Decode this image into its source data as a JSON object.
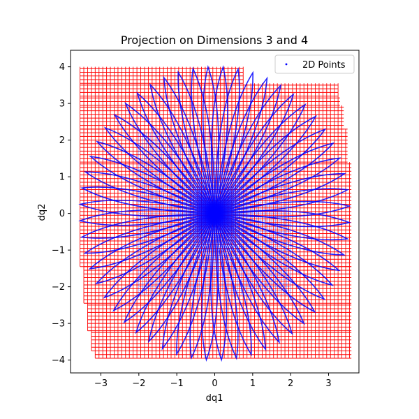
{
  "chart_data": {
    "type": "scatter",
    "title": "Projection on Dimensions 3 and 4",
    "xlabel": "dq1",
    "ylabel": "dq2",
    "xlim": [
      -3.8,
      3.8
    ],
    "ylim": [
      -4.35,
      4.45
    ],
    "xticks": [
      -3,
      -2,
      -1,
      0,
      1,
      2,
      3
    ],
    "yticks": [
      -4,
      -3,
      -2,
      -1,
      0,
      1,
      2,
      3,
      4
    ],
    "xtick_labels": [
      "−3",
      "−2",
      "−1",
      "0",
      "1",
      "2",
      "3"
    ],
    "ytick_labels": [
      "−4",
      "−3",
      "−2",
      "−1",
      "0",
      "1",
      "2",
      "3",
      "4"
    ],
    "grid": false,
    "legend": {
      "placement": "top-right",
      "entries": [
        "2D Points"
      ]
    },
    "series": [
      {
        "name": "2D Points",
        "color": "#0000ff",
        "marker": "dot"
      }
    ],
    "overlay": {
      "kind": "grid-cells",
      "color": "#ff0000",
      "cell_size": 0.1,
      "row_extents": [
        {
          "y": [
            3.55,
            4.0
          ],
          "x": [
            -3.55,
            0.75
          ]
        },
        {
          "y": [
            3.2,
            3.55
          ],
          "x": [
            -3.55,
            3.25
          ]
        },
        {
          "y": [
            2.95,
            3.2
          ],
          "x": [
            -3.55,
            3.3
          ]
        },
        {
          "y": [
            2.3,
            2.95
          ],
          "x": [
            -3.55,
            3.4
          ]
        },
        {
          "y": [
            1.4,
            2.3
          ],
          "x": [
            -3.55,
            3.5
          ]
        },
        {
          "y": [
            -1.45,
            1.4
          ],
          "x": [
            -3.55,
            3.6
          ]
        },
        {
          "y": [
            -2.45,
            -1.45
          ],
          "x": [
            -3.45,
            3.6
          ]
        },
        {
          "y": [
            -3.2,
            -2.45
          ],
          "x": [
            -3.35,
            3.6
          ]
        },
        {
          "y": [
            -3.75,
            -3.2
          ],
          "x": [
            -3.25,
            3.6
          ]
        },
        {
          "y": [
            -3.95,
            -3.75
          ],
          "x": [
            -3.15,
            3.6
          ]
        }
      ]
    }
  }
}
